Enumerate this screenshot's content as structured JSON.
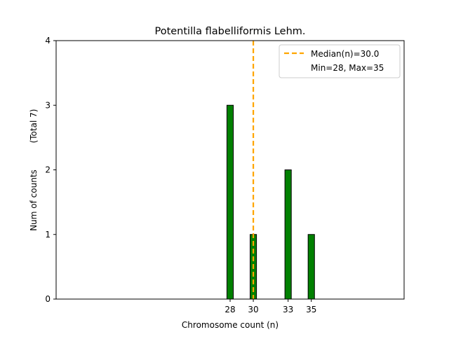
{
  "chart_data": {
    "type": "bar",
    "title": "Potentilla flabelliformis Lehm.",
    "xlabel": "Chromosome count (n)",
    "ylabel": "Num of counts",
    "ylabel_secondary": "(Total 7)",
    "xlim": [
      13,
      43
    ],
    "ylim": [
      0,
      4
    ],
    "yticks": [
      0,
      1,
      2,
      3,
      4
    ],
    "xticks": [
      28,
      30,
      33,
      35
    ],
    "bar_color": "#008000",
    "bar_edge_color": "#000000",
    "median_color": "#FFA500",
    "bars": [
      {
        "x": 28,
        "value": 3
      },
      {
        "x": 29,
        "value": 0
      },
      {
        "x": 30,
        "value": 1
      },
      {
        "x": 31,
        "value": 0
      },
      {
        "x": 32,
        "value": 0
      },
      {
        "x": 33,
        "value": 2
      },
      {
        "x": 34,
        "value": 0
      },
      {
        "x": 35,
        "value": 1
      },
      {
        "x": 36,
        "value": 0
      }
    ],
    "median": 30.0,
    "legend": {
      "placement": "top-right",
      "entries": [
        "Median(n)=30.0",
        "Min=28, Max=35"
      ]
    },
    "grid": false
  }
}
